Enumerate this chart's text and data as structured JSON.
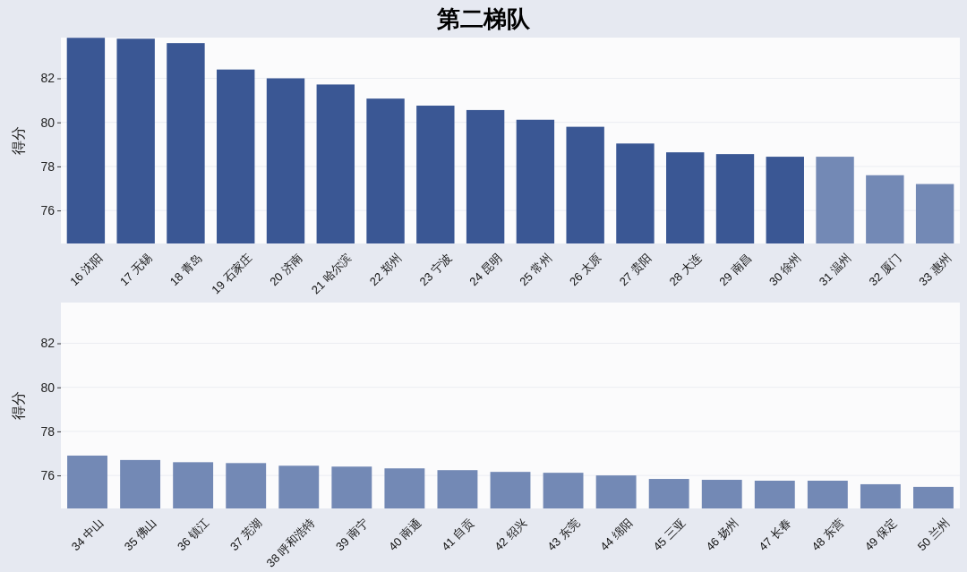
{
  "chart_data": [
    {
      "type": "bar",
      "title": "第二梯队",
      "ylabel": "得分",
      "categories": [
        "16 沈阳",
        "17 无锡",
        "18 青岛",
        "19 石家庄",
        "20 济南",
        "21 哈尔滨",
        "22 郑州",
        "23 宁波",
        "24 昆明",
        "25 常州",
        "26 太原",
        "27 贵阳",
        "28 大连",
        "29 南昌",
        "30 徐州",
        "31 温州",
        "32 厦门",
        "33 惠州"
      ],
      "values": [
        83.84,
        83.8,
        83.6,
        82.4,
        82.0,
        81.72,
        81.08,
        80.76,
        80.56,
        80.12,
        79.8,
        79.04,
        78.64,
        78.56,
        78.44,
        78.44,
        77.6,
        77.2
      ],
      "colors": [
        "#3a5794",
        "#3a5794",
        "#3a5794",
        "#3a5794",
        "#3a5794",
        "#3a5794",
        "#3a5794",
        "#3a5794",
        "#3a5794",
        "#3a5794",
        "#3a5794",
        "#3a5794",
        "#3a5794",
        "#3a5794",
        "#3a5794",
        "#7389b5",
        "#7389b5",
        "#7389b5"
      ],
      "ylim": [
        74.5,
        83.85
      ],
      "yticks": [
        76,
        78,
        80,
        82
      ],
      "grid": "y"
    },
    {
      "type": "bar",
      "ylabel": "得分",
      "categories": [
        "34 中山",
        "35 佛山",
        "36 镇江",
        "37 芜湖",
        "38 呼和浩特",
        "39 南宁",
        "40 南通",
        "41 自贡",
        "42 绍兴",
        "43 东莞",
        "44 绵阳",
        "45 三亚",
        "46 扬州",
        "47 长春",
        "48 东营",
        "49 保定",
        "50 兰州"
      ],
      "values": [
        76.9,
        76.7,
        76.6,
        76.56,
        76.44,
        76.4,
        76.32,
        76.24,
        76.16,
        76.12,
        76.0,
        75.84,
        75.8,
        75.76,
        75.76,
        75.6,
        75.48
      ],
      "colors": [
        "#7389b5",
        "#7389b5",
        "#7389b5",
        "#7389b5",
        "#7389b5",
        "#7389b5",
        "#7389b5",
        "#7389b5",
        "#7389b5",
        "#7389b5",
        "#7389b5",
        "#7389b5",
        "#7389b5",
        "#7389b5",
        "#7389b5",
        "#7389b5",
        "#7389b5"
      ],
      "ylim": [
        74.5,
        83.85
      ],
      "yticks": [
        76,
        78,
        80,
        82
      ],
      "grid": "y"
    }
  ]
}
